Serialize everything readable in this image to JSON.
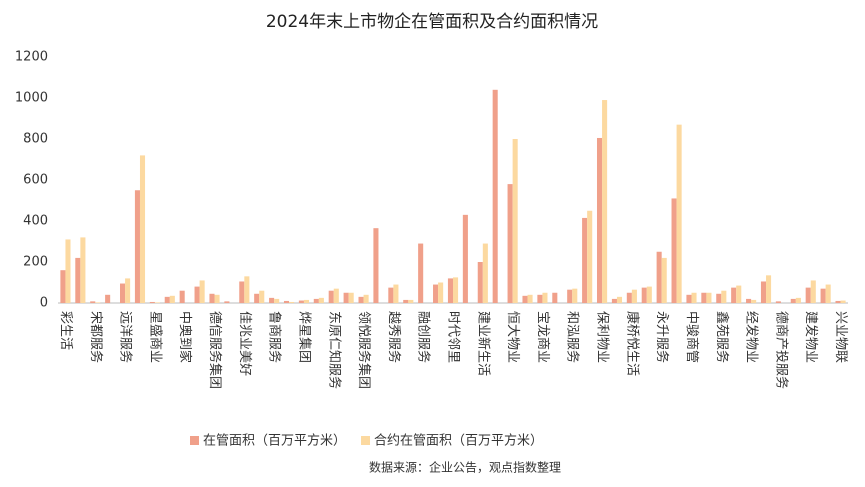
{
  "chart_data": {
    "type": "bar",
    "title": "2024年末上市物企在管面积及合约面积情况",
    "source": "数据来源：企业公告，观点指数整理",
    "categories": [
      "彩生活",
      null,
      "宋都服务",
      null,
      "远洋服务",
      null,
      "星盛商业",
      null,
      "中奥到家",
      null,
      "德信服务集团",
      null,
      "佳兆业美好",
      null,
      "鲁商服务",
      null,
      "烨星集团",
      null,
      "东原仁知服务",
      null,
      "领悦服务集团",
      null,
      "越秀服务",
      null,
      "融创服务",
      null,
      "时代邻里",
      null,
      "建业新生活",
      null,
      "恒大物业",
      null,
      "宝龙商业",
      null,
      "和泓服务",
      null,
      "保利物业",
      null,
      "康桥悦生活",
      null,
      "永升服务",
      null,
      "中骏商管",
      null,
      "鑫苑服务",
      null,
      "经发物业",
      null,
      "德商产投服务",
      null,
      "建发物业",
      null,
      "兴业物联"
    ],
    "series": [
      {
        "name": "在管面积（百万平方米）",
        "color": "#f0a08a",
        "values": [
          160,
          220,
          8,
          40,
          95,
          550,
          5,
          30,
          60,
          80,
          45,
          8,
          105,
          45,
          25,
          10,
          12,
          20,
          60,
          50,
          30,
          365,
          75,
          15,
          290,
          90,
          120,
          430,
          200,
          1040,
          580,
          35,
          40,
          50,
          65,
          415,
          805,
          20,
          50,
          75,
          250,
          510,
          40,
          50,
          45,
          75,
          20,
          105,
          8,
          20,
          75,
          70,
          10
        ]
      },
      {
        "name": "合约在管面积（百万平方米）",
        "color": "#fcd9a0",
        "values": [
          310,
          320,
          3,
          0,
          120,
          720,
          3,
          35,
          0,
          110,
          40,
          0,
          130,
          60,
          20,
          5,
          15,
          25,
          70,
          50,
          40,
          0,
          90,
          15,
          0,
          100,
          125,
          0,
          290,
          0,
          800,
          40,
          50,
          0,
          70,
          450,
          990,
          30,
          65,
          80,
          220,
          870,
          50,
          50,
          60,
          85,
          15,
          135,
          0,
          25,
          110,
          90,
          12
        ]
      }
    ],
    "ylim": [
      0,
      1200
    ],
    "yticks": [
      0,
      200,
      400,
      600,
      800,
      1000,
      1200
    ]
  }
}
